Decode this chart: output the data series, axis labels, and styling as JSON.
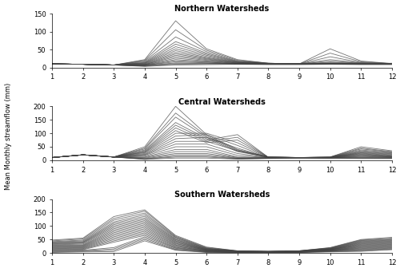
{
  "title_north": "Northern Watersheds",
  "title_central": "Central Watersheds",
  "title_south": "Southern Watersheds",
  "ylabel": "Mean Monthly streamflow (mm)",
  "months": [
    1,
    2,
    3,
    4,
    5,
    6,
    7,
    8,
    9,
    10,
    11,
    12
  ],
  "north_ylim": [
    0,
    150
  ],
  "central_ylim": [
    0,
    200
  ],
  "south_ylim": [
    0,
    200
  ],
  "north_yticks": [
    0,
    50,
    100,
    150
  ],
  "central_yticks": [
    0,
    50,
    100,
    150,
    200
  ],
  "south_yticks": [
    0,
    50,
    100,
    150,
    200
  ],
  "line_color": "#444444",
  "line_alpha": 0.75,
  "line_width": 0.6,
  "north_series": [
    [
      10,
      9,
      7,
      22,
      130,
      52,
      22,
      12,
      10,
      10,
      10,
      12
    ],
    [
      10,
      9,
      7,
      20,
      105,
      48,
      20,
      12,
      10,
      10,
      10,
      11
    ],
    [
      10,
      9,
      7,
      18,
      85,
      44,
      18,
      12,
      10,
      10,
      10,
      11
    ],
    [
      10,
      9,
      7,
      16,
      72,
      40,
      17,
      11,
      10,
      52,
      18,
      11
    ],
    [
      10,
      9,
      7,
      14,
      65,
      37,
      16,
      11,
      10,
      40,
      16,
      11
    ],
    [
      10,
      9,
      7,
      13,
      58,
      34,
      15,
      11,
      10,
      30,
      14,
      11
    ],
    [
      10,
      9,
      7,
      12,
      52,
      31,
      14,
      11,
      10,
      22,
      13,
      10
    ],
    [
      10,
      9,
      7,
      11,
      47,
      28,
      14,
      11,
      10,
      18,
      12,
      10
    ],
    [
      10,
      9,
      7,
      10,
      42,
      26,
      13,
      10,
      10,
      15,
      12,
      10
    ],
    [
      10,
      9,
      7,
      9,
      38,
      24,
      12,
      10,
      10,
      13,
      11,
      10
    ],
    [
      10,
      9,
      7,
      8,
      34,
      22,
      12,
      10,
      10,
      12,
      11,
      10
    ],
    [
      10,
      9,
      7,
      8,
      30,
      20,
      11,
      10,
      10,
      12,
      11,
      10
    ],
    [
      10,
      9,
      7,
      7,
      26,
      18,
      11,
      10,
      10,
      12,
      10,
      10
    ],
    [
      10,
      9,
      7,
      7,
      22,
      16,
      10,
      10,
      10,
      11,
      10,
      10
    ],
    [
      10,
      9,
      7,
      6,
      19,
      15,
      10,
      10,
      10,
      11,
      10,
      10
    ],
    [
      10,
      9,
      7,
      6,
      16,
      13,
      10,
      10,
      10,
      10,
      10,
      10
    ],
    [
      10,
      9,
      7,
      5,
      13,
      12,
      10,
      10,
      10,
      10,
      10,
      10
    ],
    [
      10,
      9,
      7,
      5,
      11,
      11,
      10,
      9,
      9,
      10,
      9,
      9
    ],
    [
      10,
      9,
      7,
      4,
      9,
      10,
      10,
      9,
      9,
      9,
      9,
      9
    ],
    [
      10,
      9,
      7,
      3,
      7,
      8,
      9,
      8,
      8,
      9,
      8,
      8
    ]
  ],
  "central_series": [
    [
      10,
      20,
      12,
      50,
      200,
      95,
      40,
      12,
      10,
      12,
      50,
      35
    ],
    [
      10,
      20,
      12,
      45,
      175,
      90,
      38,
      12,
      10,
      12,
      45,
      32
    ],
    [
      10,
      20,
      12,
      42,
      160,
      85,
      35,
      12,
      10,
      11,
      42,
      30
    ],
    [
      10,
      20,
      12,
      38,
      140,
      80,
      32,
      12,
      10,
      11,
      38,
      28
    ],
    [
      10,
      20,
      12,
      35,
      130,
      75,
      95,
      11,
      10,
      11,
      35,
      26
    ],
    [
      10,
      20,
      12,
      32,
      120,
      70,
      85,
      11,
      10,
      11,
      32,
      24
    ],
    [
      10,
      20,
      12,
      30,
      110,
      65,
      75,
      11,
      10,
      10,
      30,
      22
    ],
    [
      10,
      20,
      12,
      28,
      100,
      100,
      65,
      11,
      10,
      10,
      28,
      20
    ],
    [
      10,
      20,
      12,
      25,
      90,
      95,
      55,
      10,
      10,
      10,
      26,
      18
    ],
    [
      10,
      20,
      12,
      22,
      80,
      85,
      45,
      10,
      10,
      10,
      24,
      16
    ],
    [
      10,
      20,
      12,
      20,
      70,
      70,
      35,
      10,
      10,
      10,
      22,
      15
    ],
    [
      10,
      20,
      12,
      18,
      60,
      60,
      25,
      10,
      10,
      10,
      20,
      14
    ],
    [
      10,
      20,
      12,
      15,
      50,
      50,
      18,
      10,
      10,
      9,
      18,
      13
    ],
    [
      10,
      20,
      12,
      12,
      40,
      40,
      12,
      10,
      10,
      9,
      16,
      12
    ],
    [
      10,
      20,
      12,
      10,
      32,
      32,
      10,
      9,
      10,
      9,
      14,
      11
    ],
    [
      10,
      20,
      12,
      8,
      25,
      25,
      8,
      9,
      10,
      9,
      12,
      10
    ],
    [
      10,
      20,
      12,
      6,
      20,
      20,
      7,
      8,
      9,
      9,
      10,
      9
    ],
    [
      10,
      20,
      12,
      5,
      15,
      15,
      6,
      8,
      9,
      8,
      9,
      8
    ],
    [
      10,
      20,
      12,
      4,
      12,
      12,
      5,
      7,
      8,
      8,
      7,
      7
    ],
    [
      10,
      20,
      12,
      3,
      8,
      8,
      4,
      6,
      7,
      7,
      6,
      6
    ]
  ],
  "south_series": [
    [
      48,
      55,
      135,
      160,
      65,
      22,
      8,
      6,
      8,
      20,
      50,
      58
    ],
    [
      45,
      52,
      128,
      155,
      62,
      20,
      8,
      6,
      8,
      19,
      48,
      55
    ],
    [
      42,
      48,
      122,
      148,
      59,
      18,
      7,
      6,
      8,
      18,
      46,
      52
    ],
    [
      40,
      45,
      115,
      142,
      57,
      17,
      7,
      6,
      7,
      17,
      44,
      50
    ],
    [
      38,
      42,
      110,
      136,
      54,
      16,
      7,
      5,
      7,
      16,
      42,
      48
    ],
    [
      36,
      40,
      105,
      130,
      51,
      15,
      6,
      5,
      7,
      15,
      40,
      46
    ],
    [
      34,
      38,
      100,
      125,
      49,
      14,
      6,
      5,
      7,
      15,
      38,
      44
    ],
    [
      32,
      36,
      95,
      120,
      46,
      13,
      6,
      5,
      6,
      14,
      36,
      42
    ],
    [
      30,
      33,
      90,
      115,
      44,
      12,
      6,
      4,
      6,
      13,
      34,
      40
    ],
    [
      28,
      30,
      85,
      110,
      41,
      12,
      5,
      4,
      6,
      13,
      32,
      38
    ],
    [
      26,
      28,
      80,
      105,
      39,
      11,
      5,
      4,
      6,
      12,
      30,
      36
    ],
    [
      24,
      26,
      75,
      100,
      36,
      10,
      5,
      4,
      5,
      12,
      28,
      34
    ],
    [
      22,
      24,
      70,
      95,
      34,
      10,
      5,
      3,
      5,
      11,
      26,
      32
    ],
    [
      20,
      22,
      65,
      90,
      31,
      9,
      4,
      3,
      5,
      10,
      24,
      30
    ],
    [
      18,
      20,
      60,
      85,
      29,
      8,
      4,
      3,
      5,
      10,
      22,
      28
    ],
    [
      16,
      18,
      55,
      80,
      26,
      7,
      4,
      3,
      4,
      9,
      20,
      26
    ],
    [
      14,
      16,
      50,
      75,
      24,
      7,
      3,
      2,
      4,
      9,
      18,
      24
    ],
    [
      12,
      14,
      45,
      70,
      21,
      6,
      3,
      2,
      4,
      8,
      16,
      22
    ],
    [
      10,
      12,
      40,
      65,
      19,
      5,
      3,
      2,
      3,
      7,
      14,
      20
    ],
    [
      8,
      10,
      20,
      60,
      17,
      5,
      3,
      2,
      3,
      7,
      12,
      18
    ],
    [
      6,
      8,
      15,
      55,
      14,
      4,
      2,
      1,
      3,
      6,
      10,
      16
    ],
    [
      4,
      6,
      10,
      50,
      12,
      3,
      2,
      1,
      2,
      5,
      8,
      14
    ],
    [
      2,
      4,
      5,
      45,
      10,
      2,
      2,
      1,
      2,
      4,
      6,
      12
    ]
  ]
}
